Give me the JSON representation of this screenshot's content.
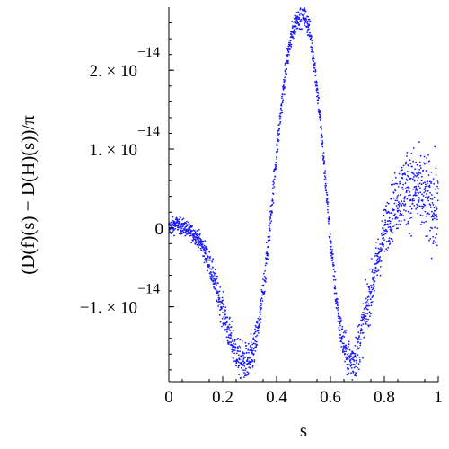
{
  "chart_data": {
    "type": "scatter",
    "title": "",
    "xlabel": "s",
    "ylabel": "(D(f)(s) − D(H)(s))/π",
    "xlim": [
      0,
      1
    ],
    "ylim": [
      -1.95e-14,
      2.8e-14
    ],
    "x_ticks": [
      {
        "value": 0,
        "label": "0"
      },
      {
        "value": 0.2,
        "label": "0.2"
      },
      {
        "value": 0.4,
        "label": "0.4"
      },
      {
        "value": 0.6,
        "label": "0.6"
      },
      {
        "value": 0.8,
        "label": "0.8"
      },
      {
        "value": 1,
        "label": "1"
      }
    ],
    "y_ticks": [
      {
        "value": -1e-14,
        "mantissa": "−1. × 10",
        "exponent": "−14"
      },
      {
        "value": 0,
        "mantissa": "0",
        "exponent": ""
      },
      {
        "value": 1e-14,
        "mantissa": "1. × 10",
        "exponent": "−14"
      },
      {
        "value": 2e-14,
        "mantissa": "2. × 10",
        "exponent": "−14"
      }
    ],
    "grid": false,
    "legend": "none",
    "series": [
      {
        "color": "#1a1aff",
        "points": [
          [
            0.0,
            0.0
          ],
          [
            0.03,
            5e-16
          ],
          [
            0.06,
            0.0
          ],
          [
            0.08,
            -5e-16
          ],
          [
            0.1,
            -1e-15
          ],
          [
            0.12,
            -2e-15
          ],
          [
            0.14,
            -3.5e-15
          ],
          [
            0.16,
            -5.5e-15
          ],
          [
            0.18,
            -8e-15
          ],
          [
            0.2,
            -1.05e-14
          ],
          [
            0.22,
            -1.3e-14
          ],
          [
            0.24,
            -1.5e-14
          ],
          [
            0.26,
            -1.65e-14
          ],
          [
            0.28,
            -1.72e-14
          ],
          [
            0.3,
            -1.7e-14
          ],
          [
            0.32,
            -1.5e-14
          ],
          [
            0.34,
            -1.1e-14
          ],
          [
            0.36,
            -5e-15
          ],
          [
            0.38,
            2e-15
          ],
          [
            0.4,
            9.5e-15
          ],
          [
            0.42,
            1.6e-14
          ],
          [
            0.44,
            2.15e-14
          ],
          [
            0.46,
            2.5e-14
          ],
          [
            0.48,
            2.7e-14
          ],
          [
            0.5,
            2.72e-14
          ],
          [
            0.52,
            2.55e-14
          ],
          [
            0.54,
            2.1e-14
          ],
          [
            0.56,
            1.45e-14
          ],
          [
            0.58,
            6.5e-15
          ],
          [
            0.6,
            -1.5e-15
          ],
          [
            0.62,
            -8.5e-15
          ],
          [
            0.64,
            -1.35e-14
          ],
          [
            0.66,
            -1.62e-14
          ],
          [
            0.68,
            -1.7e-14
          ],
          [
            0.7,
            -1.55e-14
          ],
          [
            0.72,
            -1.25e-14
          ],
          [
            0.74,
            -9.5e-15
          ],
          [
            0.76,
            -6.5e-15
          ],
          [
            0.78,
            -3.5e-15
          ],
          [
            0.8,
            -5e-16
          ],
          [
            0.82,
            1.5e-15
          ],
          [
            0.84,
            3e-15
          ],
          [
            0.86,
            4.2e-15
          ],
          [
            0.88,
            5e-15
          ],
          [
            0.9,
            5.2e-15
          ],
          [
            0.92,
            4.8e-15
          ],
          [
            0.94,
            4.2e-15
          ],
          [
            0.96,
            3.5e-15
          ],
          [
            0.98,
            2.8e-15
          ],
          [
            1.0,
            2.2e-15
          ]
        ],
        "spread": [
          [
            0.0,
            1e-15
          ],
          [
            0.1,
            1e-15
          ],
          [
            0.2,
            2e-15
          ],
          [
            0.3,
            2.5e-15
          ],
          [
            0.4,
            1.5e-15
          ],
          [
            0.5,
            1.5e-15
          ],
          [
            0.6,
            1.5e-15
          ],
          [
            0.7,
            3e-15
          ],
          [
            0.8,
            3e-15
          ],
          [
            0.9,
            5e-15
          ],
          [
            1.0,
            5.5e-15
          ]
        ]
      }
    ]
  }
}
